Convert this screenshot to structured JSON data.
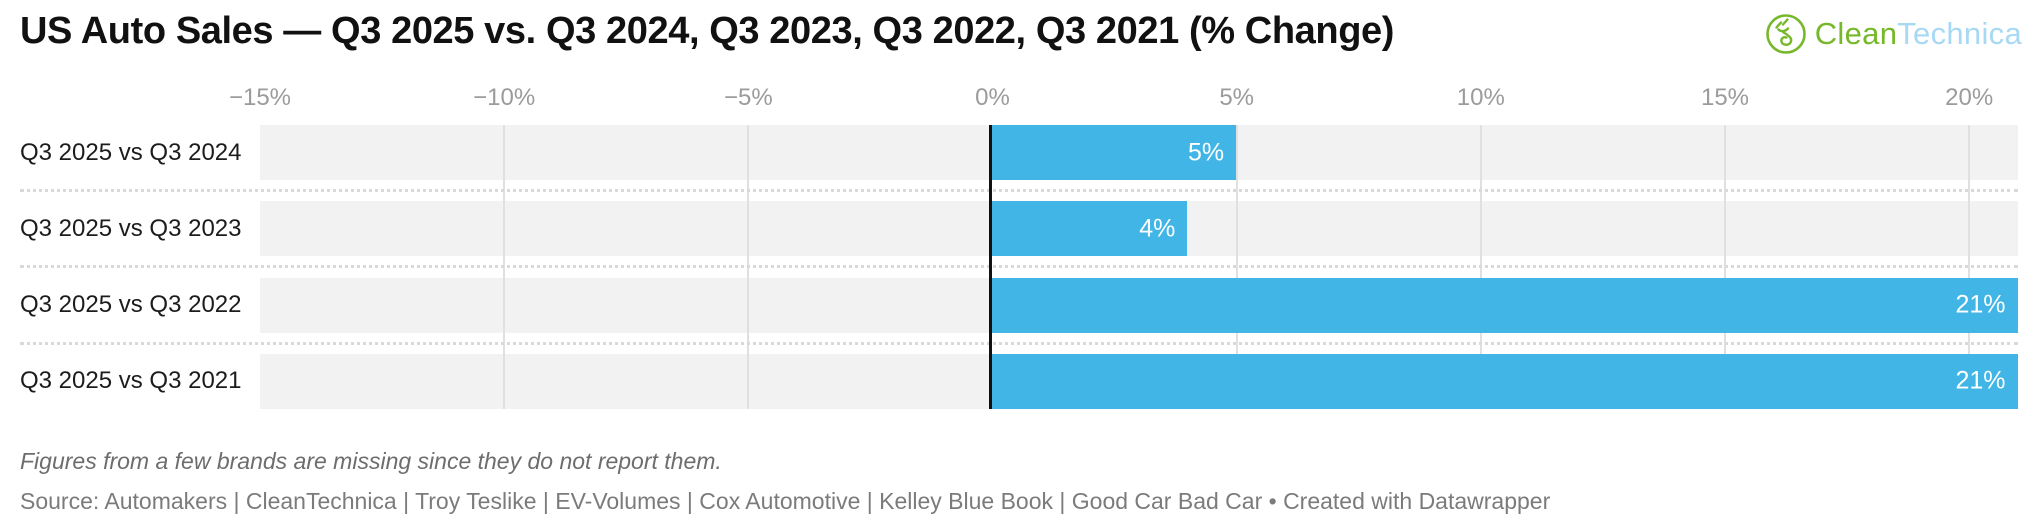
{
  "header": {
    "title": "US Auto Sales — Q3 2025 vs. Q3 2024, Q3 2023, Q3 2022, Q3 2021 (% Change)",
    "logo": {
      "part1": "Clean",
      "part2": "Technica",
      "green_color": "#76b82a",
      "blue_color": "#a7d9f4",
      "icon": "cleantechnica-plug-sprout-icon"
    }
  },
  "chart_data": {
    "type": "bar",
    "orientation": "horizontal",
    "title": "US Auto Sales — Q3 2025 vs. Q3 2024, Q3 2023, Q3 2022, Q3 2021 (% Change)",
    "categories": [
      "Q3 2025 vs Q3 2024",
      "Q3 2025 vs Q3 2023",
      "Q3 2025 vs Q3 2022",
      "Q3 2025 vs Q3 2021"
    ],
    "values": [
      5,
      4,
      21,
      21
    ],
    "value_labels": [
      "5%",
      "4%",
      "21%",
      "21%"
    ],
    "xlabel": "",
    "ylabel": "",
    "xlim": [
      -15,
      21
    ],
    "ticks": [
      {
        "value": -15,
        "label": "−15%"
      },
      {
        "value": -10,
        "label": "−10%"
      },
      {
        "value": -5,
        "label": "−5%"
      },
      {
        "value": 0,
        "label": "0%"
      },
      {
        "value": 5,
        "label": "5%"
      },
      {
        "value": 10,
        "label": "10%"
      },
      {
        "value": 15,
        "label": "15%"
      },
      {
        "value": 20,
        "label": "20%"
      }
    ],
    "grid": true,
    "zero_line": true,
    "legend": "none",
    "bar_color": "#41b6e6",
    "band_color": "#f2f2f2",
    "grid_color": "#e0e0e0",
    "zero_line_color": "#111111",
    "value_label_color": "#ffffff"
  },
  "footer": {
    "note": "Figures from a few brands are missing since they do not report them.",
    "source": "Source: Automakers | CleanTechnica | Troy Teslike | EV-Volumes | Cox Automotive | Kelley Blue Book | Good Car Bad Car • Created with Datawrapper"
  }
}
